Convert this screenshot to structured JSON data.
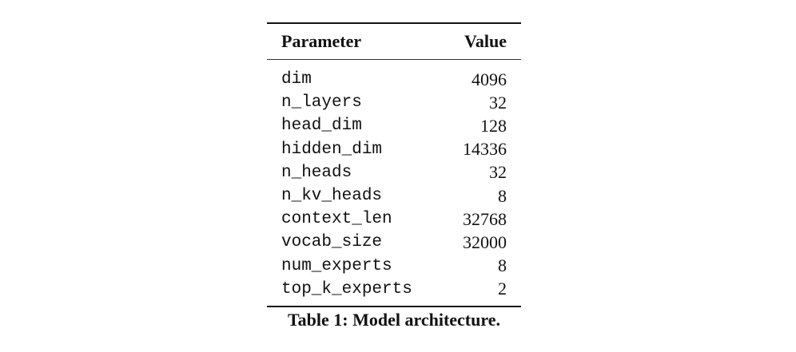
{
  "table": {
    "headers": {
      "parameter": "Parameter",
      "value": "Value"
    },
    "rows": [
      {
        "parameter": "dim",
        "value": "4096"
      },
      {
        "parameter": "n_layers",
        "value": "32"
      },
      {
        "parameter": "head_dim",
        "value": "128"
      },
      {
        "parameter": "hidden_dim",
        "value": "14336"
      },
      {
        "parameter": "n_heads",
        "value": "32"
      },
      {
        "parameter": "n_kv_heads",
        "value": "8"
      },
      {
        "parameter": "context_len",
        "value": "32768"
      },
      {
        "parameter": "vocab_size",
        "value": "32000"
      },
      {
        "parameter": "num_experts",
        "value": "8"
      },
      {
        "parameter": "top_k_experts",
        "value": "2"
      }
    ],
    "caption": "Table 1: Model architecture."
  }
}
